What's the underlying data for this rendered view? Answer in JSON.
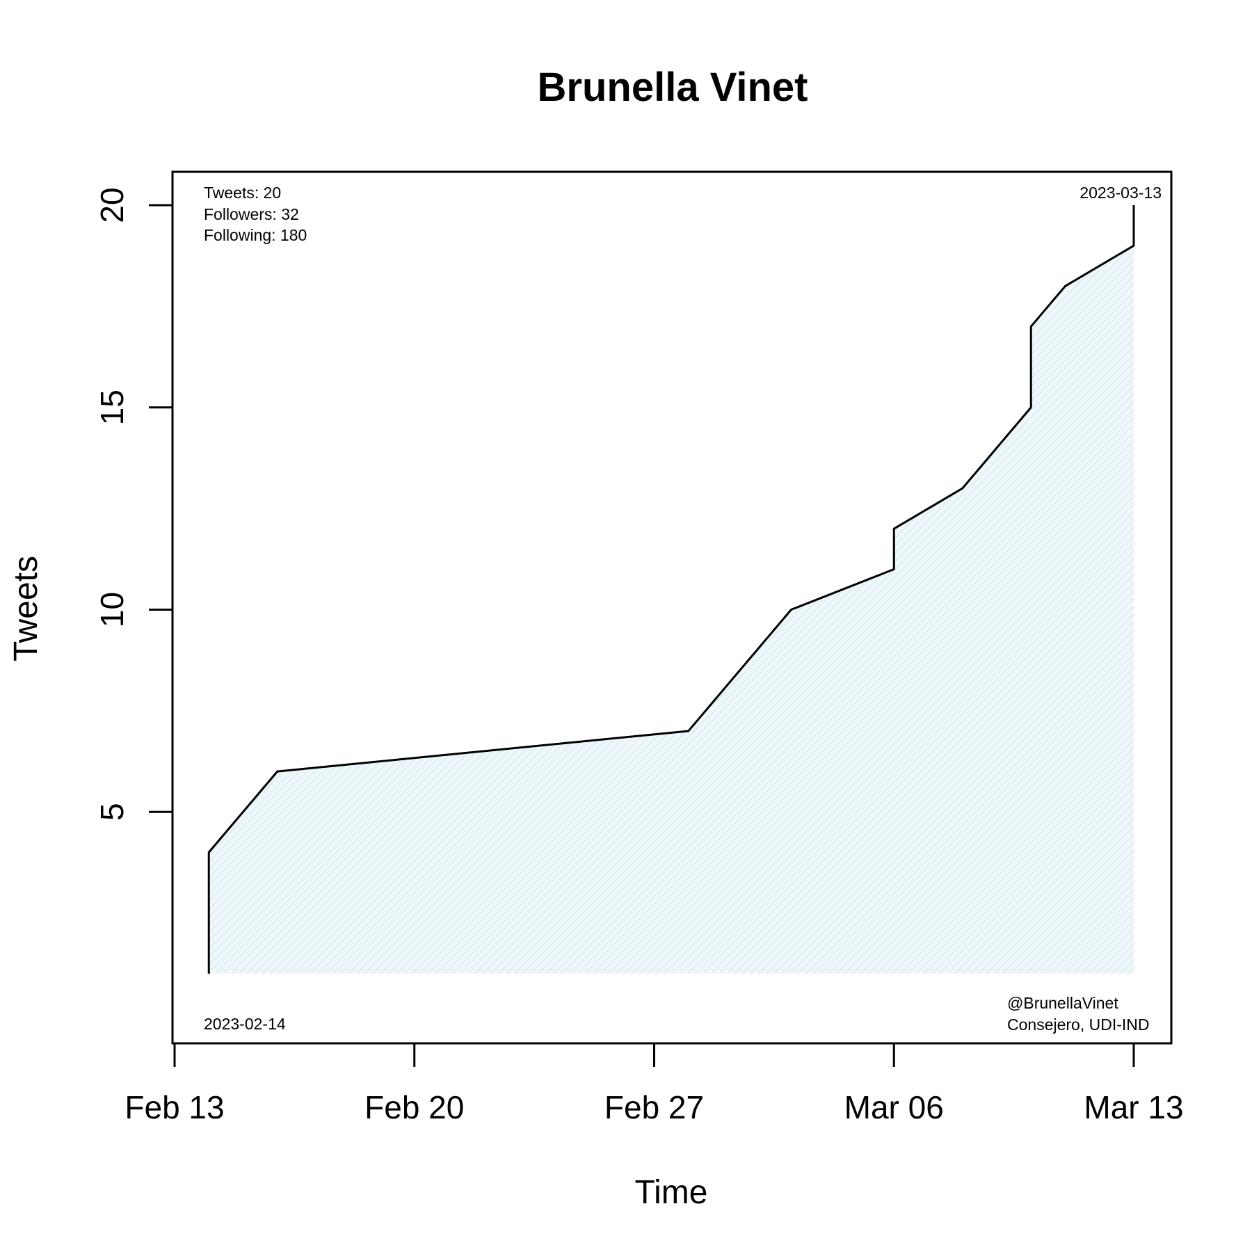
{
  "chart_data": {
    "type": "area",
    "title": "Brunella Vinet",
    "xlabel": "Time",
    "ylabel": "Tweets",
    "x": [
      "2023-02-14",
      "2023-02-16",
      "2023-02-28",
      "2023-03-03",
      "2023-03-06",
      "2023-03-06",
      "2023-03-08",
      "2023-03-10",
      "2023-03-10",
      "2023-03-11",
      "2023-03-13",
      "2023-03-13"
    ],
    "values": [
      4,
      6,
      7,
      10,
      11,
      12,
      13,
      15,
      17,
      18,
      19,
      20
    ],
    "baseline": 1,
    "xlim": [
      "2023-02-13",
      "2023-03-14"
    ],
    "ylim": [
      0,
      20.8
    ],
    "x_ticks": [
      {
        "date": "2023-02-13",
        "label": "Feb 13"
      },
      {
        "date": "2023-02-20",
        "label": "Feb 20"
      },
      {
        "date": "2023-02-27",
        "label": "Feb 27"
      },
      {
        "date": "2023-03-06",
        "label": "Mar 06"
      },
      {
        "date": "2023-03-13",
        "label": "Mar 13"
      }
    ],
    "y_ticks": [
      5,
      10,
      15,
      20
    ],
    "fill_color": "#e6f3f7",
    "line_color": "#000000",
    "grid": false,
    "annotations": {
      "stats": [
        "Tweets: 20",
        "Followers: 32",
        "Following: 180"
      ],
      "start_date": "2023-02-14",
      "end_date": "2023-03-13",
      "handle": "@BrunellaVinet",
      "affiliation": "Consejero, UDI-IND"
    }
  }
}
